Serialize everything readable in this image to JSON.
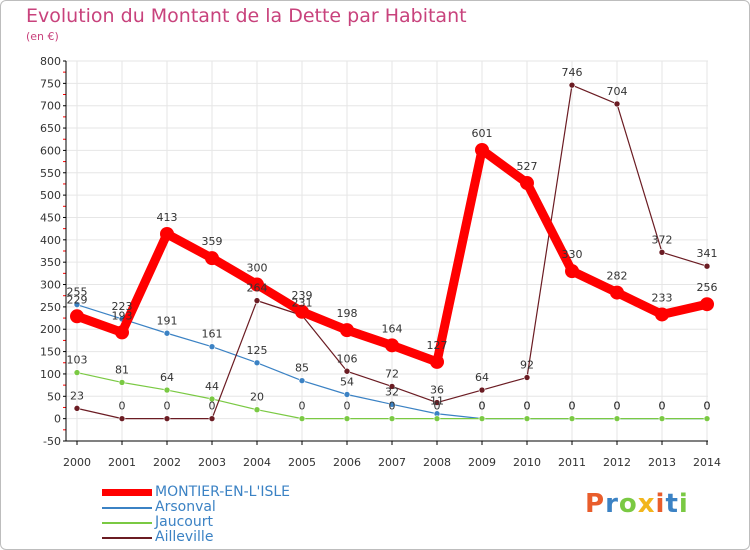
{
  "chart_data": {
    "type": "line",
    "title": "Evolution du Montant de la Dette par Habitant",
    "subtitle": "(en €)",
    "x": [
      "2000",
      "2001",
      "2002",
      "2003",
      "2004",
      "2005",
      "2006",
      "2007",
      "2008",
      "2009",
      "2010",
      "2011",
      "2012",
      "2013",
      "2014"
    ],
    "y_ticks": [
      "-50",
      "0",
      "50",
      "100",
      "150",
      "200",
      "250",
      "300",
      "350",
      "400",
      "450",
      "500",
      "550",
      "600",
      "650",
      "700",
      "750",
      "800"
    ],
    "ylim": [
      -50,
      800
    ],
    "grid": true,
    "legend_placement": "bottom-left",
    "series": [
      {
        "name": "MONTIER-EN-L'ISLE",
        "color": "#ff0000",
        "label_color": "#ff0000",
        "values": [
          229,
          193,
          413,
          359,
          300,
          239,
          198,
          164,
          127,
          601,
          527,
          330,
          282,
          233,
          256
        ],
        "labels": [
          "229",
          "193",
          "413",
          "359",
          "300",
          "239",
          "198",
          "164",
          "127",
          "601",
          "527",
          "330",
          "282",
          "233",
          "256"
        ]
      },
      {
        "name": "Arsonval",
        "color": "#3b82c4",
        "label_color": "#3b82c4",
        "values": [
          255,
          223,
          191,
          161,
          125,
          85,
          54,
          32,
          11,
          0,
          0,
          0,
          0,
          0,
          0
        ],
        "labels": [
          "255",
          "223",
          "191",
          "161",
          "125",
          "85",
          "54",
          "32",
          "11",
          "0",
          "0",
          "0",
          "0",
          "0",
          "0"
        ]
      },
      {
        "name": "Jaucourt",
        "color": "#7ac943",
        "label_color": "#7ac943",
        "values": [
          103,
          81,
          64,
          44,
          20,
          0,
          0,
          0,
          0,
          0,
          0,
          0,
          0,
          0,
          0
        ],
        "labels": [
          "103",
          "81",
          "64",
          "44",
          "20",
          "0",
          "0",
          "0",
          "0",
          "0",
          "0",
          "0",
          "0",
          "0",
          "0"
        ]
      },
      {
        "name": "Ailleville",
        "color": "#6b1c23",
        "label_color": "#6b1c23",
        "values": [
          23,
          0,
          0,
          0,
          264,
          231,
          106,
          72,
          36,
          64,
          92,
          746,
          704,
          372,
          341
        ],
        "labels": [
          "23",
          "0",
          "0",
          "0",
          "264",
          "231",
          "106",
          "72",
          "36",
          "64",
          "92",
          "746",
          "704",
          "372",
          "341"
        ]
      }
    ]
  },
  "brand": "Proxiti",
  "colors": {
    "title": "#c8427c",
    "grid": "#e6e6e6",
    "axis": "#000000",
    "tick_mark": "#ff0000"
  }
}
